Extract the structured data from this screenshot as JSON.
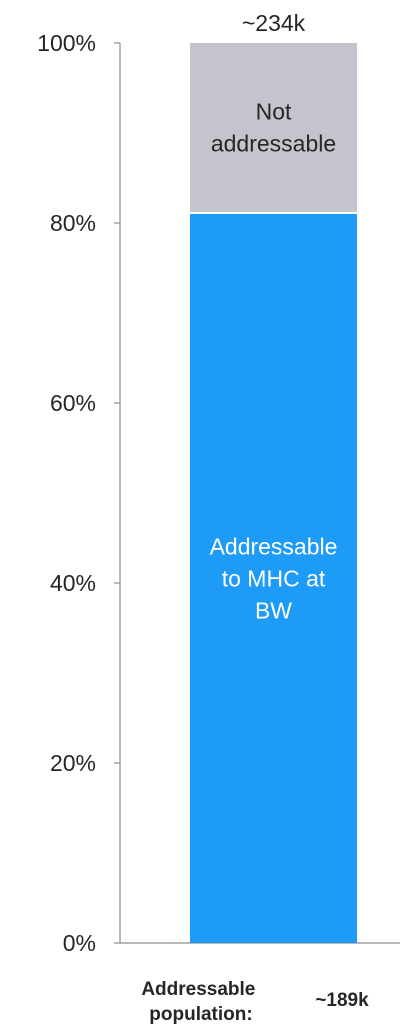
{
  "chart_data": {
    "type": "bar",
    "stacked": true,
    "categories": [
      ""
    ],
    "series": [
      {
        "name": "Addressable to MHC at BW",
        "values": [
          81
        ],
        "color": "#1e9bf7",
        "text_color": "#ffffff"
      },
      {
        "name": "Not addressable",
        "values": [
          19
        ],
        "color": "#c4c4cc",
        "text_color": "#262626"
      }
    ],
    "segment_labels": [
      [
        "Addressable",
        "to MHC at",
        "BW"
      ],
      [
        "Not",
        "addressable"
      ]
    ],
    "total_label": "~234k",
    "ylim": [
      0,
      100
    ],
    "yticks": [
      0,
      20,
      40,
      60,
      80,
      100
    ],
    "ytick_labels": [
      "0%",
      "20%",
      "40%",
      "60%",
      "80%",
      "100%"
    ],
    "grid": false,
    "legend": "none",
    "footer": {
      "label_lines": [
        "Addressable",
        "population:"
      ],
      "value": "~189k"
    }
  }
}
